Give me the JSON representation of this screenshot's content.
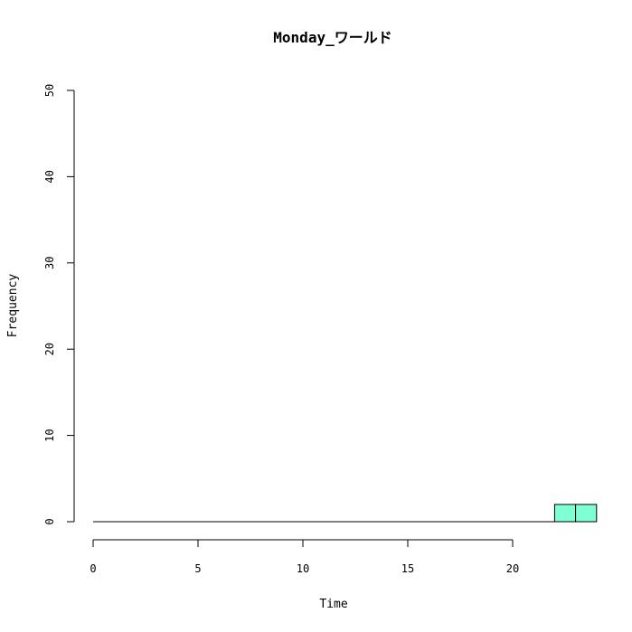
{
  "chart_data": {
    "type": "bar",
    "title": "Monday_ワールド",
    "xlabel": "Time",
    "ylabel": "Frequency",
    "xlim": [
      0,
      24
    ],
    "ylim": [
      0,
      50
    ],
    "x_ticks": [
      0,
      5,
      10,
      15,
      20
    ],
    "y_ticks": [
      0,
      10,
      20,
      30,
      40,
      50
    ],
    "bins": [
      {
        "x0": 22,
        "x1": 23,
        "count": 2
      },
      {
        "x0": 23,
        "x1": 24,
        "count": 2
      }
    ],
    "bar_color": "#7FFFD4",
    "grid": false,
    "legend": "none"
  }
}
